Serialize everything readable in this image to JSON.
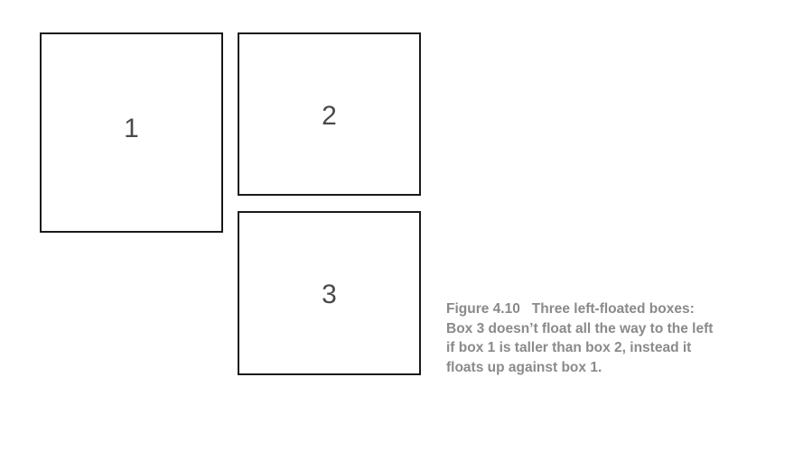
{
  "diagram": {
    "boxes": [
      {
        "label": "1"
      },
      {
        "label": "2"
      },
      {
        "label": "3"
      }
    ]
  },
  "caption": {
    "figure_number": "Figure 4.10",
    "lines": [
      "Three left-floated boxes:",
      "Box 3 doesn’t float all the way to the left",
      "if box 1 is taller than box 2, instead it",
      "floats up against box 1."
    ]
  },
  "colors": {
    "border": "#1a1a1a",
    "box_label": "#4a4a4a",
    "caption": "#8a8a8a"
  }
}
